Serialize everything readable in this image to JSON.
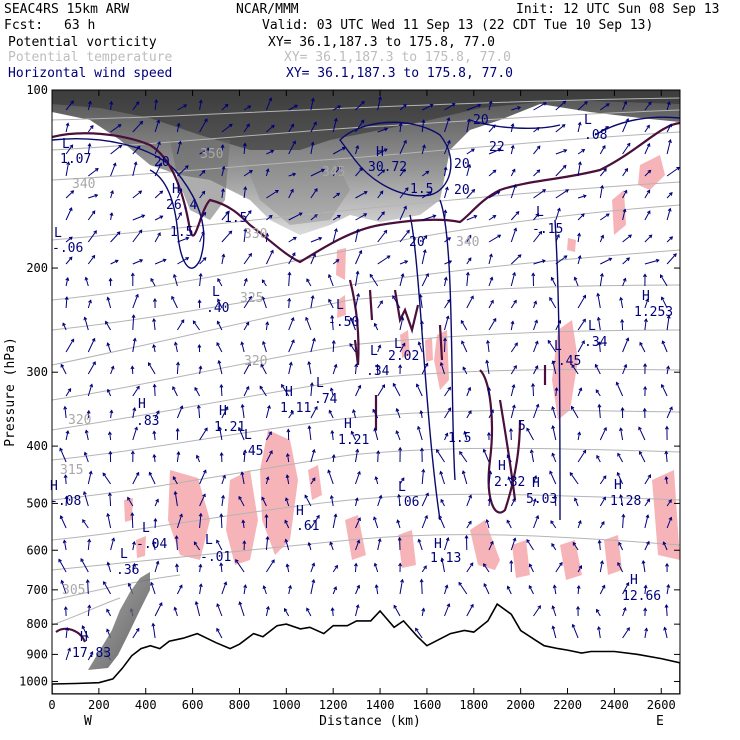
{
  "header": {
    "model": "SEAC4RS 15km ARW",
    "org": "NCAR/MMM",
    "init": "Init: 12 UTC Sun 08 Sep 13",
    "fcst_label": "Fcst:",
    "fcst_value": "63 h",
    "valid": "Valid: 03 UTC Wed 11 Sep 13 (22 CDT Tue 10 Sep 13)"
  },
  "legend": [
    {
      "name": "Potential vorticity",
      "xy": "XY=  36.1,187.3 to 175.8, 77.0",
      "color": "#000000"
    },
    {
      "name": "Potential temperature",
      "xy": "XY=  36.1,187.3 to 175.8, 77.0",
      "color": "#bdbdbd"
    },
    {
      "name": "Horizontal wind speed",
      "xy": "XY=  36.1,187.3 to 175.8, 77.0",
      "color": "#00007a"
    }
  ],
  "colors": {
    "terrain": "#ffffff",
    "pv_contour": "#4a0f3a",
    "theta_contour": "#b4b4b4",
    "wind_contour": "#0a0a6e",
    "vectors": "#00007a",
    "pink_shading": "#f7b4b8",
    "stratosphere_shading": "#555555"
  },
  "chart_data": {
    "type": "cross-section",
    "xlabel": "Distance (km)",
    "ylabel": "Pressure (hPa)",
    "x_range": [
      0,
      2680
    ],
    "y_range": [
      1050,
      100
    ],
    "y_scale": "log-pressure",
    "x_ticks": [
      "0",
      "200",
      "400",
      "600",
      "800",
      "1000",
      "1200",
      "1400",
      "1600",
      "1800",
      "2000",
      "2200",
      "2400",
      "2600"
    ],
    "y_ticks": [
      "100",
      "200",
      "300",
      "400",
      "500",
      "600",
      "700",
      "800",
      "900",
      "1000"
    ],
    "x_end_labels": {
      "left": "W",
      "right": "E"
    },
    "potential_temperature_labels": [
      "350",
      "345",
      "340",
      "335",
      "330",
      "325",
      "320",
      "320",
      "315",
      "305",
      "340"
    ],
    "wind_speed_labels": [
      "20",
      "1.5",
      "1.5",
      "20",
      "20",
      "20",
      "20",
      "22",
      "1.5",
      "1.5",
      "5"
    ],
    "extrema": [
      {
        "type": "L",
        "value": "1.07"
      },
      {
        "type": "H",
        "value": "26.4"
      },
      {
        "type": "L",
        "value": "-.06"
      },
      {
        "type": "H",
        "value": "30.72"
      },
      {
        "type": "L",
        "value": "-.15"
      },
      {
        "type": "L",
        "value": ".08"
      },
      {
        "type": "L",
        "value": ".40"
      },
      {
        "type": "L",
        "value": "-.50"
      },
      {
        "type": "L",
        "value": ".34"
      },
      {
        "type": "L",
        "value": "2.02"
      },
      {
        "type": "L",
        "value": "-.45"
      },
      {
        "type": "L",
        "value": ".34"
      },
      {
        "type": "H",
        "value": "1.253"
      },
      {
        "type": "H",
        "value": ".83"
      },
      {
        "type": "H",
        "value": "1.21"
      },
      {
        "type": "L",
        "value": ".45"
      },
      {
        "type": "H",
        "value": "1.11"
      },
      {
        "type": "L",
        "value": ".74"
      },
      {
        "type": "H",
        "value": "1.21"
      },
      {
        "type": "H",
        "value": "2.82"
      },
      {
        "type": "H",
        "value": "5.03"
      },
      {
        "type": "H",
        "value": "1.28"
      },
      {
        "type": "H",
        "value": "-.08"
      },
      {
        "type": "L",
        "value": "-.04"
      },
      {
        "type": "L",
        "value": ".36"
      },
      {
        "type": "L",
        "value": "-.01"
      },
      {
        "type": "H",
        "value": ".61"
      },
      {
        "type": "L",
        "value": ".06"
      },
      {
        "type": "H",
        "value": "1.13"
      },
      {
        "type": "H",
        "value": "12.66"
      },
      {
        "type": "H",
        "value": "17.83"
      }
    ],
    "terrain_profile": {
      "x_km": [
        0,
        100,
        200,
        260,
        300,
        340,
        380,
        420,
        460,
        500,
        560,
        620,
        700,
        760,
        800,
        860,
        900,
        960,
        1000,
        1060,
        1100,
        1160,
        1200,
        1260,
        1300,
        1360,
        1400,
        1460,
        1500,
        1560,
        1600,
        1650,
        1700,
        1760,
        1800,
        1860,
        1900,
        1960,
        2000,
        2060,
        2100,
        2160,
        2200,
        2260,
        2300,
        2400,
        2500,
        2600,
        2680
      ],
      "pressure_hpa": [
        1010,
        1008,
        1005,
        990,
        950,
        905,
        880,
        870,
        880,
        855,
        845,
        830,
        860,
        880,
        865,
        830,
        840,
        805,
        800,
        815,
        810,
        830,
        805,
        805,
        790,
        790,
        760,
        810,
        790,
        840,
        870,
        850,
        830,
        820,
        825,
        790,
        740,
        770,
        820,
        850,
        870,
        880,
        885,
        895,
        890,
        890,
        900,
        915,
        930
      ]
    }
  }
}
